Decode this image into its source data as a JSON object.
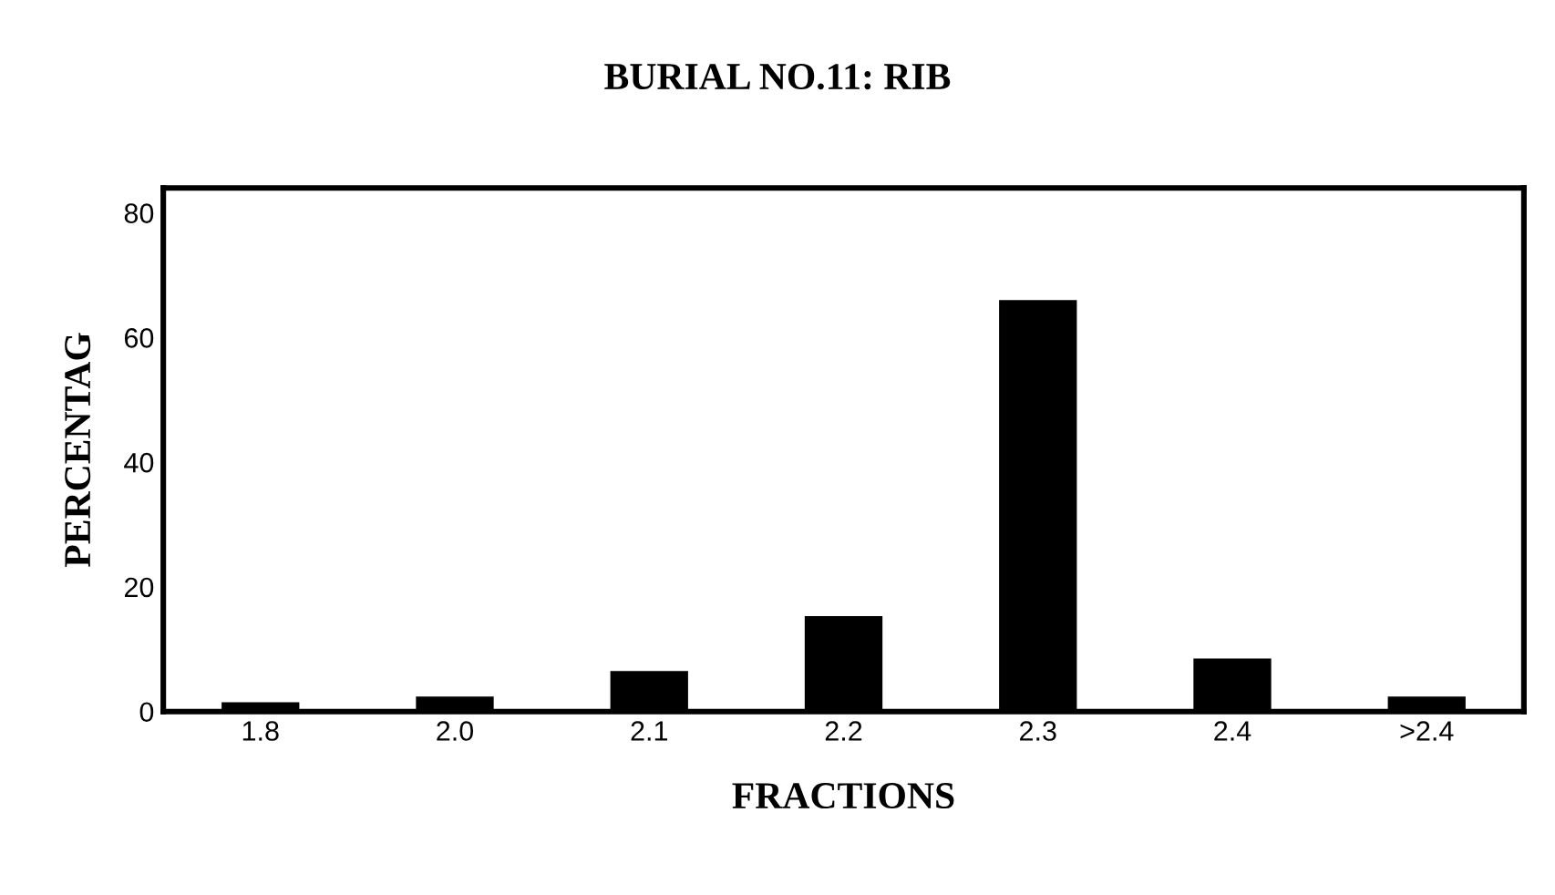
{
  "chart_data": {
    "type": "bar",
    "title": "BURIAL NO.11: RIB",
    "xlabel": "FRACTIONS",
    "ylabel": "PERCENTAG",
    "categories": [
      "1.8",
      "2.0",
      "2.1",
      "2.2",
      "2.3",
      "2.4",
      ">2.4"
    ],
    "values": [
      1.5,
      2.4,
      6.5,
      15.3,
      66,
      8.5,
      2.4
    ],
    "color": "#000000",
    "ylim": [
      0,
      84
    ],
    "yticks": [
      0,
      20,
      40,
      60,
      80
    ],
    "grid": false
  }
}
